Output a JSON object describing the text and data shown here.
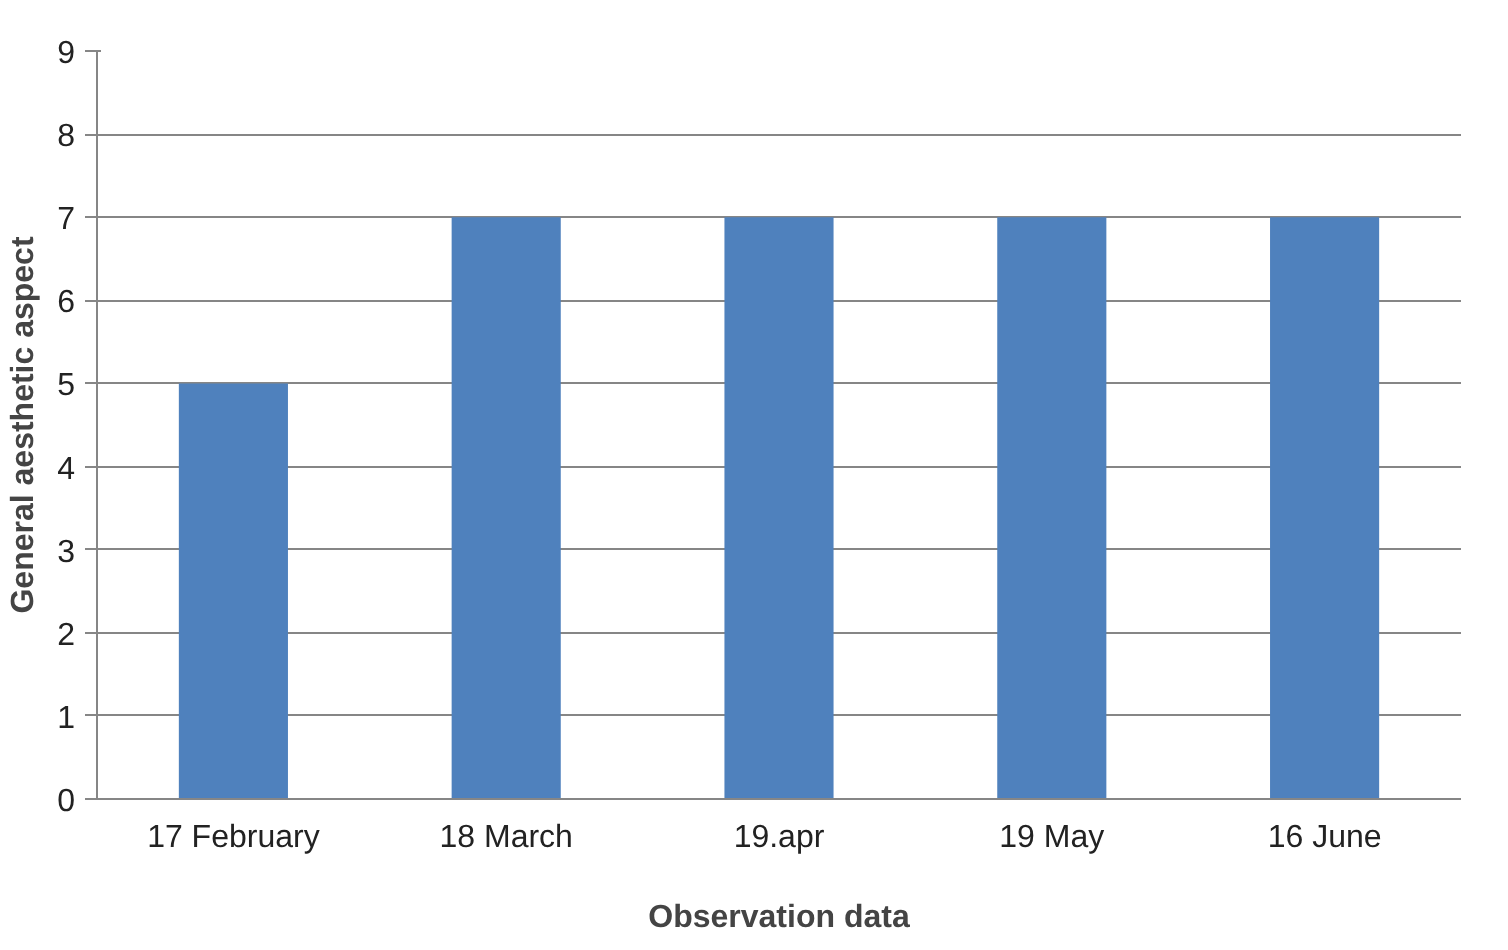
{
  "chart_data": {
    "type": "bar",
    "xlabel": "Observation data",
    "ylabel": "General aesthetic aspect",
    "categories": [
      "17 February",
      "18 March",
      "19.apr",
      "19 May",
      "16 June"
    ],
    "values": [
      5,
      7,
      7,
      7,
      7
    ],
    "color": "#4f81bd",
    "ylim": [
      0,
      9
    ],
    "yticks": [
      0,
      1,
      2,
      3,
      4,
      5,
      6,
      7,
      8,
      9
    ],
    "grid": "y"
  }
}
